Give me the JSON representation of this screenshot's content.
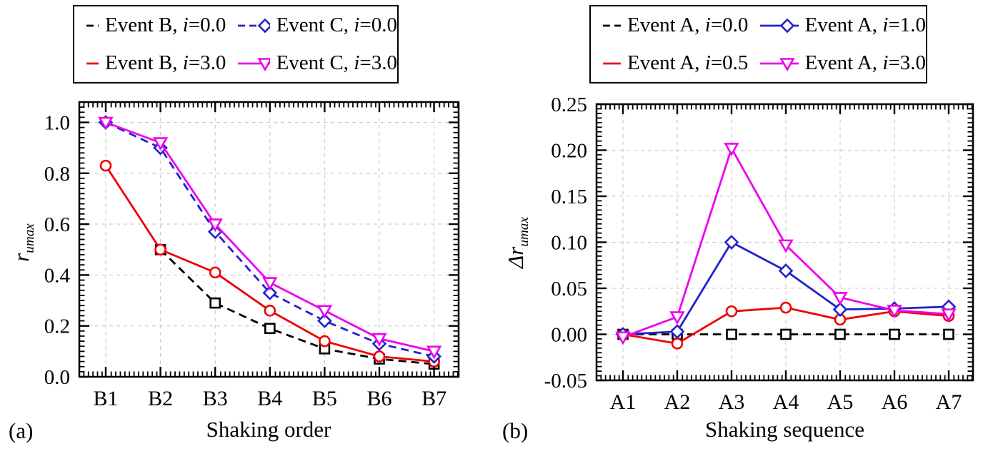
{
  "figure": {
    "panel_a_tag": "(a)",
    "panel_b_tag": "(b)"
  },
  "colors": {
    "black": "#000000",
    "red": "#ee0000",
    "blue": "#2222cc",
    "magenta": "#ee00ee",
    "grid": "#c9c9c9"
  },
  "chart_data": [
    {
      "type": "line",
      "panel": "a",
      "xlabel": "Shaking order",
      "ylabel": "r_umax",
      "ylabel_main": "r",
      "ylabel_sub": "umax",
      "categories": [
        "B1",
        "B2",
        "B3",
        "B4",
        "B5",
        "B6",
        "B7"
      ],
      "ylim": [
        0,
        1.08
      ],
      "yticks": [
        0.0,
        0.2,
        0.4,
        0.6,
        0.8,
        1.0
      ],
      "ytick_labels": [
        "0.0",
        "0.2",
        "0.4",
        "0.6",
        "0.8",
        "1.0"
      ],
      "grid": true,
      "legend_position": "top-outside",
      "legend_order": [
        0,
        2,
        1,
        3
      ],
      "series": [
        {
          "name": "Event B, i=0.0",
          "label_prefix": "Event B, ",
          "label_param": "i",
          "label_suffix": "=0.0",
          "color": "#000000",
          "line": "dashed",
          "marker": "square",
          "values": [
            null,
            0.5,
            0.29,
            0.19,
            0.11,
            0.07,
            0.05
          ]
        },
        {
          "name": "Event B, i=3.0",
          "label_prefix": "Event B, ",
          "label_param": "i",
          "label_suffix": "=3.0",
          "color": "#ee0000",
          "line": "solid",
          "marker": "circle",
          "values": [
            0.83,
            0.5,
            0.41,
            0.26,
            0.14,
            0.08,
            0.06
          ]
        },
        {
          "name": "Event C, i=0.0",
          "label_prefix": "Event C, ",
          "label_param": "i",
          "label_suffix": "=0.0",
          "color": "#2222cc",
          "line": "dashed",
          "marker": "diamond",
          "values": [
            1.0,
            0.9,
            0.57,
            0.33,
            0.22,
            0.13,
            0.08
          ]
        },
        {
          "name": "Event C, i=3.0",
          "label_prefix": "Event C, ",
          "label_param": "i",
          "label_suffix": "=3.0",
          "color": "#ee00ee",
          "line": "solid",
          "marker": "triangle-down",
          "values": [
            1.0,
            0.92,
            0.6,
            0.37,
            0.26,
            0.15,
            0.1
          ]
        }
      ]
    },
    {
      "type": "line",
      "panel": "b",
      "xlabel": "Shaking sequence",
      "ylabel": "Δr_umax",
      "ylabel_main": "Δr",
      "ylabel_sub": "umax",
      "categories": [
        "A1",
        "A2",
        "A3",
        "A4",
        "A5",
        "A6",
        "A7"
      ],
      "ylim": [
        -0.05,
        0.25
      ],
      "yticks": [
        -0.05,
        0.0,
        0.05,
        0.1,
        0.15,
        0.2,
        0.25
      ],
      "ytick_labels": [
        "-0.05",
        "0.00",
        "0.05",
        "0.10",
        "0.15",
        "0.20",
        "0.25"
      ],
      "grid": true,
      "legend_position": "top-outside",
      "legend_order": [
        0,
        2,
        1,
        3
      ],
      "series": [
        {
          "name": "Event A, i=0.0",
          "label_prefix": "Event A, ",
          "label_param": "i",
          "label_suffix": "=0.0",
          "color": "#000000",
          "line": "dashed",
          "marker": "square",
          "values": [
            0.0,
            0.0,
            0.0,
            0.0,
            0.0,
            0.0,
            0.0
          ]
        },
        {
          "name": "Event A, i=0.5",
          "label_prefix": "Event A, ",
          "label_param": "i",
          "label_suffix": "=0.5",
          "color": "#ee0000",
          "line": "solid",
          "marker": "circle",
          "values": [
            0.0,
            -0.01,
            0.025,
            0.029,
            0.016,
            0.025,
            0.02
          ]
        },
        {
          "name": "Event A, i=1.0",
          "label_prefix": "Event A, ",
          "label_param": "i",
          "label_suffix": "=1.0",
          "color": "#2222cc",
          "line": "solid",
          "marker": "diamond",
          "values": [
            0.0,
            0.003,
            0.1,
            0.069,
            0.027,
            0.028,
            0.03
          ]
        },
        {
          "name": "Event A, i=3.0",
          "label_prefix": "Event A, ",
          "label_param": "i",
          "label_suffix": "=3.0",
          "color": "#ee00ee",
          "line": "solid",
          "marker": "triangle-down",
          "values": [
            -0.003,
            0.019,
            0.202,
            0.097,
            0.04,
            0.026,
            0.022
          ]
        }
      ]
    }
  ]
}
